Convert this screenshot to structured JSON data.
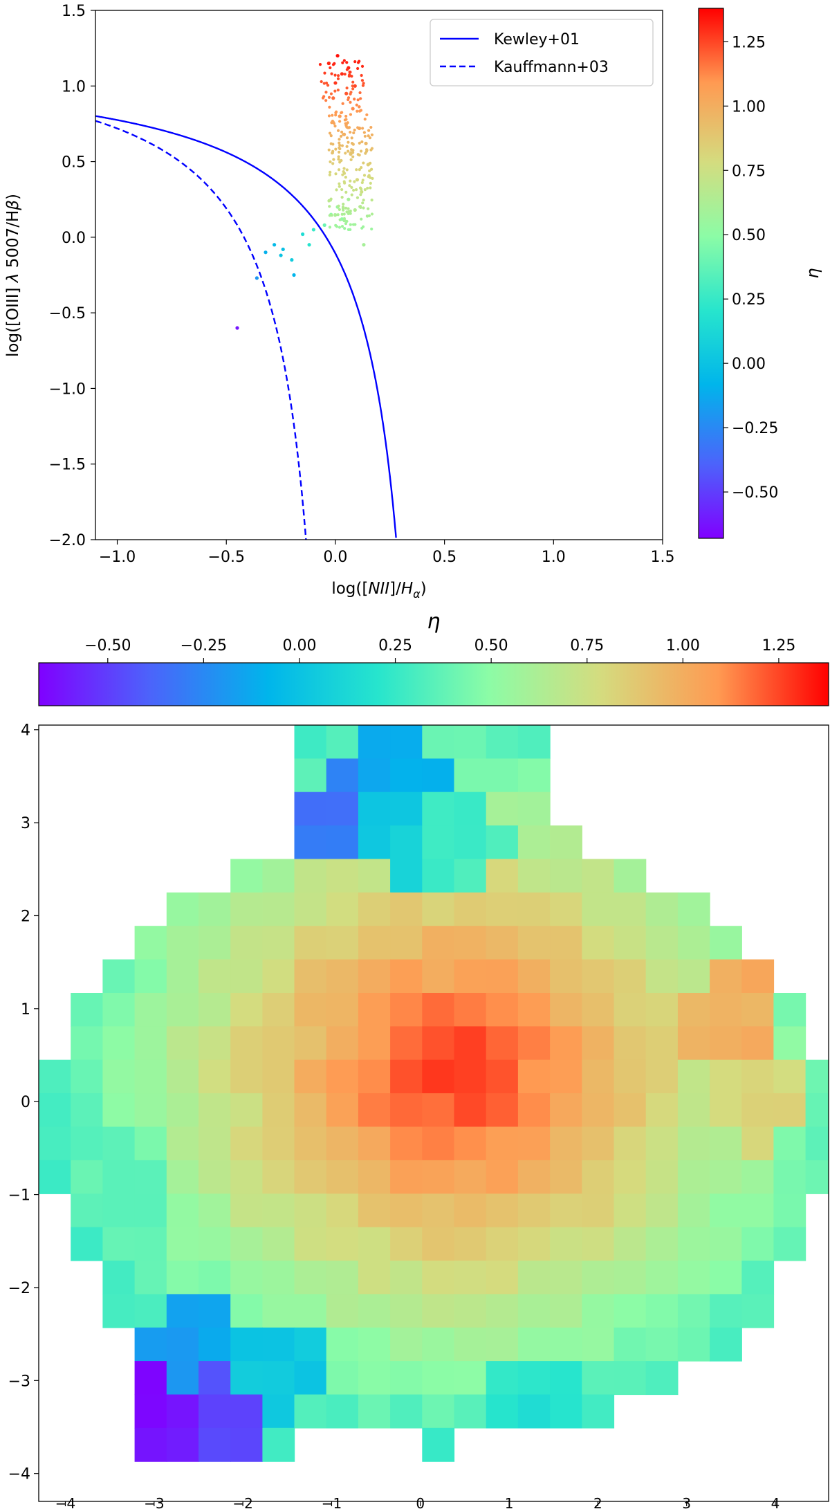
{
  "chart_data": [
    {
      "type": "scatter",
      "title": "",
      "xlabel": "log([NII]/H_α)",
      "ylabel": "log([OIII] λ 5007/Hβ)",
      "xlim": [
        -1.1,
        1.5
      ],
      "ylim": [
        -2.0,
        1.5
      ],
      "xticks": [
        "−1.0",
        "−0.5",
        "0.0",
        "0.5",
        "1.0",
        "1.5"
      ],
      "xtick_values": [
        -1.0,
        -0.5,
        0.0,
        0.5,
        1.0,
        1.5
      ],
      "yticks": [
        "1.5",
        "1.0",
        "0.5",
        "0.0",
        "−0.5",
        "−1.0",
        "−1.5",
        "−2.0"
      ],
      "ytick_values": [
        1.5,
        1.0,
        0.5,
        0.0,
        -0.5,
        -1.0,
        -1.5,
        -2.0
      ],
      "legend_position": "top-right",
      "lines": [
        {
          "name": "Kewley+01",
          "style": "solid",
          "color": "#0000ff",
          "formula": "0.61/(x-0.47)+1.19"
        },
        {
          "name": "Kauffmann+03",
          "style": "dashed",
          "color": "#0000ff",
          "formula": "0.61/(x-0.05)+1.3"
        }
      ],
      "points": [
        {
          "x": -0.45,
          "y": -0.6,
          "eta": -0.62
        },
        {
          "x": -0.36,
          "y": -0.27,
          "eta": -0.2
        },
        {
          "x": -0.32,
          "y": -0.1,
          "eta": -0.1
        },
        {
          "x": -0.28,
          "y": -0.05,
          "eta": -0.05
        },
        {
          "x": -0.25,
          "y": -0.12,
          "eta": 0.0
        },
        {
          "x": -0.24,
          "y": -0.08,
          "eta": -0.02
        },
        {
          "x": -0.2,
          "y": -0.15,
          "eta": 0.05
        },
        {
          "x": -0.19,
          "y": -0.25,
          "eta": -0.08
        },
        {
          "x": -0.15,
          "y": 0.02,
          "eta": 0.15
        },
        {
          "x": -0.12,
          "y": -0.05,
          "eta": 0.2
        },
        {
          "x": -0.1,
          "y": 0.05,
          "eta": 0.25
        },
        {
          "x": -0.05,
          "y": 0.08,
          "eta": 0.4
        },
        {
          "x": -0.02,
          "y": 0.15,
          "eta": 0.5
        },
        {
          "x": 0.01,
          "y": 0.2,
          "eta": 0.55
        },
        {
          "x": 0.03,
          "y": 0.12,
          "eta": 0.5
        },
        {
          "x": 0.06,
          "y": 0.25,
          "eta": 0.6
        },
        {
          "x": 0.09,
          "y": 0.18,
          "eta": 0.65
        },
        {
          "x": 0.12,
          "y": 0.3,
          "eta": 0.75
        },
        {
          "x": 0.13,
          "y": -0.05,
          "eta": 0.6
        },
        {
          "x": 0.1,
          "y": 0.38,
          "eta": 0.8
        },
        {
          "x": 0.15,
          "y": 0.48,
          "eta": 0.85
        },
        {
          "x": 0.07,
          "y": 0.55,
          "eta": 0.9
        },
        {
          "x": 0.14,
          "y": 0.62,
          "eta": 0.95
        },
        {
          "x": 0.04,
          "y": 0.68,
          "eta": 1.0
        },
        {
          "x": 0.11,
          "y": 0.72,
          "eta": 1.02
        },
        {
          "x": 0.02,
          "y": 0.8,
          "eta": 1.08
        },
        {
          "x": 0.08,
          "y": 0.85,
          "eta": 1.12
        },
        {
          "x": -0.01,
          "y": 0.92,
          "eta": 1.18
        },
        {
          "x": 0.05,
          "y": 0.95,
          "eta": 1.22
        },
        {
          "x": 0.0,
          "y": 1.02,
          "eta": 1.28
        },
        {
          "x": 0.03,
          "y": 1.08,
          "eta": 1.3
        },
        {
          "x": 0.06,
          "y": 1.12,
          "eta": 1.32
        },
        {
          "x": -0.03,
          "y": 1.15,
          "eta": 1.3
        },
        {
          "x": 0.01,
          "y": 1.2,
          "eta": 1.35
        },
        {
          "x": 0.09,
          "y": 1.0,
          "eta": 1.25
        }
      ],
      "colorbar": {
        "label": "η",
        "orientation": "vertical",
        "range": [
          -0.68,
          1.38
        ],
        "ticks": [
          "1.25",
          "1.00",
          "0.75",
          "0.50",
          "0.25",
          "0.00",
          "−0.25",
          "−0.50"
        ],
        "tick_values": [
          1.25,
          1.0,
          0.75,
          0.5,
          0.25,
          0.0,
          -0.25,
          -0.5
        ]
      }
    },
    {
      "type": "heatmap",
      "title": "",
      "xlabel": "",
      "ylabel": "",
      "xlim": [
        -4.3,
        4.6
      ],
      "ylim": [
        -4.3,
        4.05
      ],
      "xticks": [
        "−4",
        "−3",
        "−2",
        "−1",
        "0",
        "1",
        "2",
        "3",
        "4"
      ],
      "xtick_values": [
        -4,
        -3,
        -2,
        -1,
        0,
        1,
        2,
        3,
        4
      ],
      "yticks": [
        "4",
        "3",
        "2",
        "1",
        "0",
        "−1",
        "−2",
        "−3",
        "−4"
      ],
      "ytick_values": [
        4,
        3,
        2,
        1,
        0,
        -1,
        -2,
        -3,
        -4
      ],
      "description_of_field": "Voronoi-binned map of eta: peak near (0.4, 0.3), decreasing outward",
      "peak": {
        "x": 0.4,
        "y": 0.3,
        "eta": 1.33
      },
      "colorbar": {
        "label": "η",
        "orientation": "horizontal",
        "position": "top",
        "range": [
          -0.68,
          1.38
        ],
        "ticks": [
          "−0.50",
          "−0.25",
          "0.00",
          "0.25",
          "0.50",
          "0.75",
          "1.00",
          "1.25"
        ],
        "tick_values": [
          -0.5,
          -0.25,
          0.0,
          0.25,
          0.5,
          0.75,
          1.0,
          1.25
        ]
      },
      "regions": [
        {
          "name": "north-plume",
          "x": -0.3,
          "y": 3.5,
          "eta": -0.1
        },
        {
          "name": "north-cap-left",
          "x": -1.0,
          "y": 3.0,
          "eta": -0.3
        },
        {
          "name": "north-cap-mid",
          "x": -0.2,
          "y": 2.9,
          "eta": 0.05
        },
        {
          "name": "north-cap-right",
          "x": 0.4,
          "y": 2.9,
          "eta": 0.3
        },
        {
          "name": "southwest-purple-a",
          "x": -3.0,
          "y": -3.3,
          "eta": -0.62
        },
        {
          "name": "southwest-purple-b",
          "x": -2.2,
          "y": -3.3,
          "eta": -0.45
        },
        {
          "name": "southwest-blue",
          "x": -2.5,
          "y": -2.6,
          "eta": -0.15
        },
        {
          "name": "southwest-cyan",
          "x": -1.7,
          "y": -2.8,
          "eta": 0.05
        },
        {
          "name": "south-cyan",
          "x": 1.2,
          "y": -3.2,
          "eta": 0.2
        },
        {
          "name": "west-green",
          "x": -3.3,
          "y": -0.8,
          "eta": 0.4
        },
        {
          "name": "east-tan",
          "x": 3.8,
          "y": 0.0,
          "eta": 0.8
        },
        {
          "name": "east-orange",
          "x": 3.5,
          "y": 0.9,
          "eta": 1.0
        }
      ]
    }
  ]
}
